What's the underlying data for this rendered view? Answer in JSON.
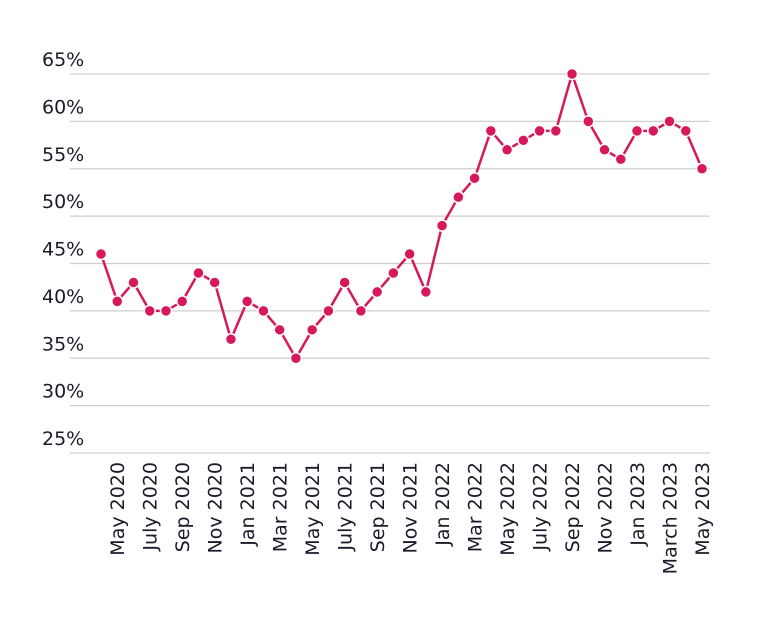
{
  "chart_data": {
    "type": "line",
    "categories": [
      null,
      "May 2020",
      null,
      "July 2020",
      null,
      "Sep 2020",
      null,
      "Nov 2020",
      null,
      "Jan 2021",
      null,
      "Mar 2021",
      null,
      "May 2021",
      null,
      "July 2021",
      null,
      "Sep 2021",
      null,
      "Nov 2021",
      null,
      "Jan 2022",
      null,
      "Mar 2022",
      null,
      "May 2022",
      null,
      "July 2022",
      null,
      "Sep 2022",
      null,
      "Nov 2022",
      null,
      "Jan 2023",
      null,
      "March 2023",
      null,
      "May 2023"
    ],
    "series": [
      {
        "color": "#d6195b",
        "values": [
          46,
          41,
          43,
          40,
          40,
          41,
          44,
          43,
          37,
          41,
          40,
          38,
          35,
          38,
          40,
          43,
          40,
          42,
          44,
          46,
          42,
          49,
          52,
          54,
          59,
          57,
          58,
          59,
          59,
          65,
          60,
          57,
          56,
          59,
          59,
          60,
          59,
          55
        ]
      }
    ],
    "ylim": [
      25,
      65
    ],
    "yticks": [
      {
        "value": 25,
        "label": "25%"
      },
      {
        "value": 30,
        "label": "30%"
      },
      {
        "value": 35,
        "label": "35%"
      },
      {
        "value": 40,
        "label": "40%"
      },
      {
        "value": 45,
        "label": "45%"
      },
      {
        "value": 50,
        "label": "50%"
      },
      {
        "value": 55,
        "label": "55%"
      },
      {
        "value": 60,
        "label": "60%"
      },
      {
        "value": 65,
        "label": "65%"
      }
    ],
    "grid": true
  }
}
